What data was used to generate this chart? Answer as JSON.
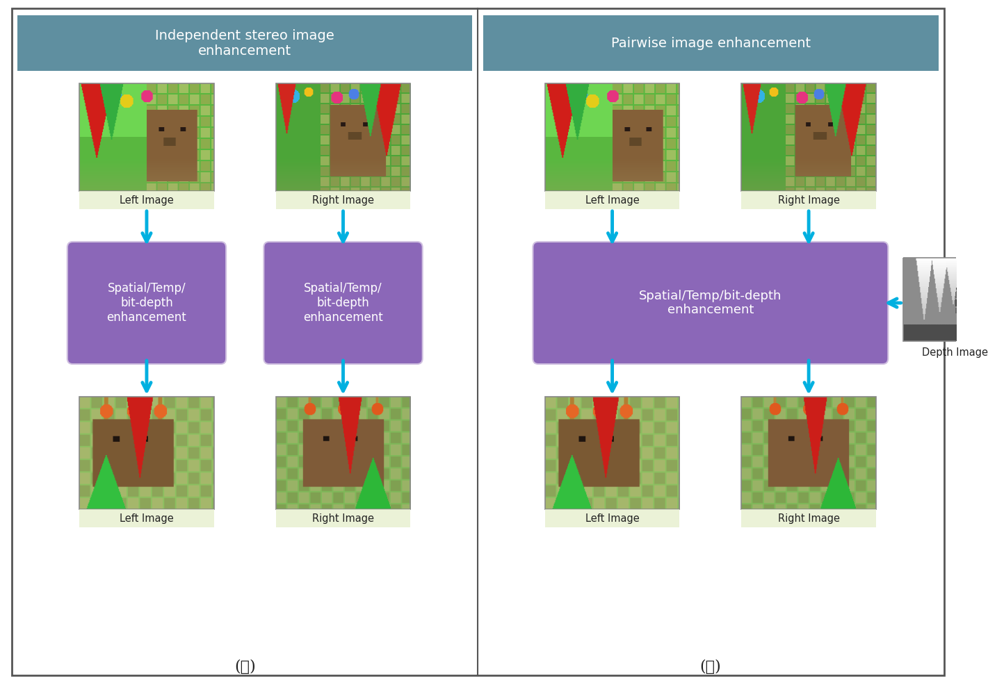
{
  "background_color": "#ffffff",
  "panel_a_title": "Independent stereo image\nenhancement",
  "panel_b_title": "Pairwise image enhancement",
  "title_bg": "#5f8fa0",
  "title_color": "#ffffff",
  "title_fontsize": 13,
  "box1_text": "Spatial/Temp/\nbit-depth\nenhancement",
  "box2_text": "Spatial/Temp/\nbit-depth\nenhancement",
  "box_b_text": "Spatial/Temp/bit-depth\nenhancement",
  "box_color": "#8b67b8",
  "box_edge_color": "#c8b8d8",
  "box_text_color": "#ffffff",
  "arrow_color": "#00b0e0",
  "label_a": "(ａ)",
  "label_b": "(ｂ)",
  "left_label": "Left Image",
  "right_label": "Right Image",
  "depth_label": "Depth Image",
  "border_color": "#555555",
  "label_fontsize": 16,
  "img_label_fontsize": 11
}
